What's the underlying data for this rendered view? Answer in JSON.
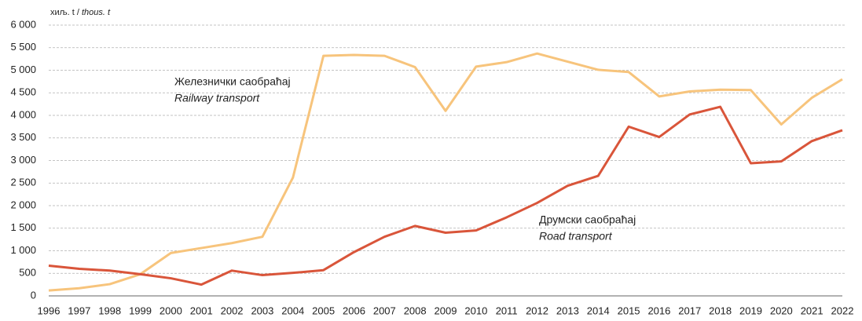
{
  "chart_data": {
    "type": "line",
    "y_label": "хиљ. t /",
    "y_label_en": "thous. t",
    "categories": [
      "1996",
      "1997",
      "1998",
      "1999",
      "2000",
      "2001",
      "2002",
      "2003",
      "2004",
      "2005",
      "2006",
      "2007",
      "2008",
      "2009",
      "2010",
      "2011",
      "2012",
      "2013",
      "2014",
      "2015",
      "2016",
      "2017",
      "2018",
      "2019",
      "2020",
      "2021",
      "2022"
    ],
    "series": [
      {
        "name": "Железнички саобраћај",
        "name_en": "Railway transport",
        "color": "#f7c47c",
        "values": [
          120,
          170,
          260,
          480,
          950,
          1060,
          1170,
          1310,
          2620,
          5320,
          5340,
          5320,
          5070,
          4100,
          5080,
          5180,
          5370,
          5190,
          5010,
          4960,
          4420,
          4530,
          4570,
          4560,
          3800,
          4390,
          4800
        ]
      },
      {
        "name": "Друмски саобраћај",
        "name_en": "Road transport",
        "color": "#d9553a",
        "values": [
          670,
          600,
          560,
          480,
          390,
          250,
          560,
          460,
          510,
          570,
          970,
          1310,
          1550,
          1400,
          1450,
          1740,
          2060,
          2440,
          2660,
          3750,
          3520,
          4020,
          4190,
          2940,
          2980,
          3430,
          3670
        ]
      }
    ],
    "ylim": [
      0,
      6000
    ],
    "yticks": [
      0,
      500,
      {
        "value": 1000,
        "label": "1 000"
      },
      {
        "value": 1500,
        "label": "1 500"
      },
      {
        "value": 2000,
        "label": "2 000"
      },
      {
        "value": 2500,
        "label": "2 500"
      },
      {
        "value": 3000,
        "label": "3 000"
      },
      {
        "value": 3500,
        "label": "3 500"
      },
      {
        "value": 4000,
        "label": "4 000"
      },
      {
        "value": 4500,
        "label": "4 500"
      },
      {
        "value": 5000,
        "label": "5 000"
      },
      {
        "value": 5500,
        "label": "5 500"
      },
      {
        "value": 6000,
        "label": "6 000"
      }
    ],
    "grid": true
  }
}
